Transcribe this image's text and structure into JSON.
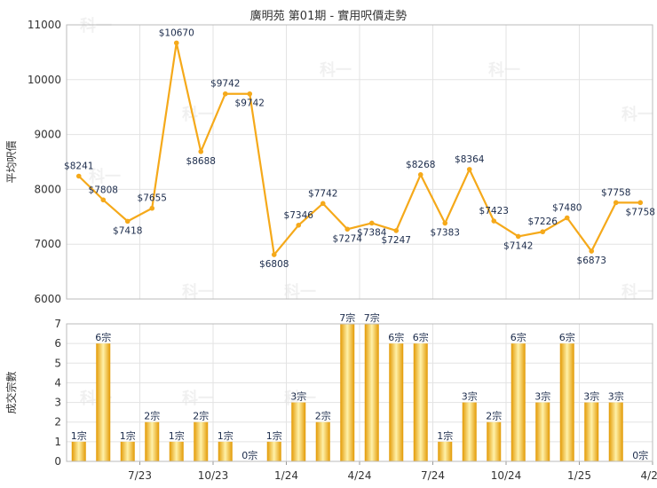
{
  "title": "廣明苑 第01期 - 實用呎價走勢",
  "watermark": "科一",
  "colors": {
    "line": "#f5a91a",
    "bar_dark": "#e39a05",
    "bar_light": "#fff1a8",
    "grid": "#e3e3e3",
    "label": "#1a2a4a"
  },
  "chart_data": [
    {
      "type": "line",
      "ylabel": "平均呎價",
      "ylim": [
        6000,
        11000
      ],
      "yticks": [
        "6000",
        "7000",
        "8000",
        "9000",
        "10000",
        "11000"
      ],
      "values": [
        8241,
        7808,
        7418,
        7655,
        10670,
        8688,
        9742,
        9742,
        6808,
        7346,
        7742,
        7274,
        7384,
        7247,
        8268,
        7383,
        8364,
        7423,
        7142,
        7226,
        7480,
        6873,
        7758,
        7758
      ],
      "labels": [
        "$8241",
        "$7808",
        "$7418",
        "$7655",
        "$10670",
        "$8688",
        "$9742",
        "$9742",
        "$6808",
        "$7346",
        "$7742",
        "$7274",
        "$7384",
        "$7247",
        "$8268",
        "$7383",
        "$8364",
        "$7423",
        "$7142",
        "$7226",
        "$7480",
        "$6873",
        "$7758",
        "$7758"
      ]
    },
    {
      "type": "bar",
      "ylabel": "成交宗數",
      "ylim": [
        0,
        7
      ],
      "yticks": [
        "0",
        "1",
        "2",
        "3",
        "4",
        "5",
        "6",
        "7"
      ],
      "x_tick_labels": [
        "7/23",
        "10/23",
        "1/24",
        "4/24",
        "7/24",
        "10/24",
        "1/25",
        "4/25"
      ],
      "values": [
        1,
        6,
        1,
        2,
        1,
        2,
        1,
        0,
        1,
        3,
        2,
        7,
        7,
        6,
        6,
        1,
        3,
        2,
        6,
        3,
        6,
        3,
        3,
        0
      ],
      "labels": [
        "1宗",
        "6宗",
        "1宗",
        "2宗",
        "1宗",
        "2宗",
        "1宗",
        "0宗",
        "1宗",
        "3宗",
        "2宗",
        "7宗",
        "7宗",
        "6宗",
        "6宗",
        "1宗",
        "3宗",
        "2宗",
        "6宗",
        "3宗",
        "6宗",
        "3宗",
        "3宗",
        "0宗"
      ]
    }
  ]
}
